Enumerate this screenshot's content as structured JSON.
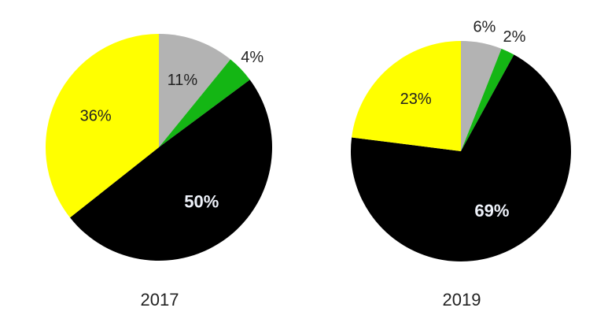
{
  "chart_data": [
    {
      "type": "pie",
      "caption": "2017",
      "slices": [
        {
          "label": "11%",
          "value": 11,
          "color": "#b3b3b3"
        },
        {
          "label": "4%",
          "value": 4,
          "color": "#14b614"
        },
        {
          "label": "50%",
          "value": 50,
          "color": "#000000"
        },
        {
          "label": "36%",
          "value": 36,
          "color": "#ffff00"
        }
      ]
    },
    {
      "type": "pie",
      "caption": "2019",
      "slices": [
        {
          "label": "6%",
          "value": 6,
          "color": "#b3b3b3"
        },
        {
          "label": "2%",
          "value": 2,
          "color": "#14b614"
        },
        {
          "label": "69%",
          "value": 69,
          "color": "#000000"
        },
        {
          "label": "23%",
          "value": 23,
          "color": "#ffff00"
        }
      ]
    }
  ]
}
